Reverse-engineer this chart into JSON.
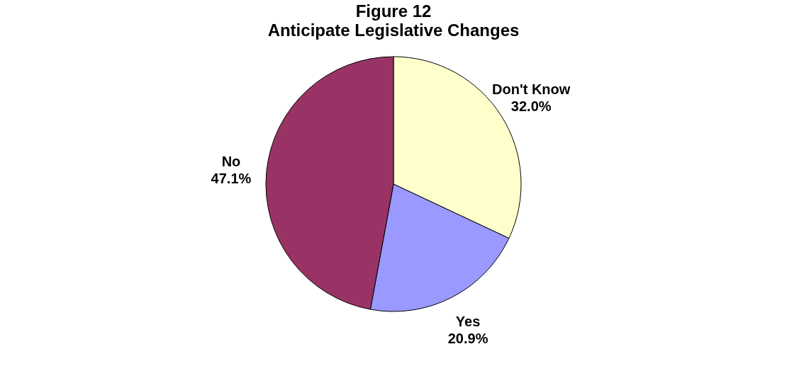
{
  "chart_data": {
    "type": "pie",
    "title": "Figure 12",
    "subtitle": "Anticipate Legislative Changes",
    "categories": [
      "Don't Know",
      "Yes",
      "No"
    ],
    "values": [
      32.0,
      20.9,
      47.1
    ],
    "colors": [
      "#ffffcc",
      "#9999ff",
      "#993366"
    ],
    "value_labels": [
      "32.0%",
      "20.9%",
      "47.1%"
    ],
    "legend": false
  }
}
